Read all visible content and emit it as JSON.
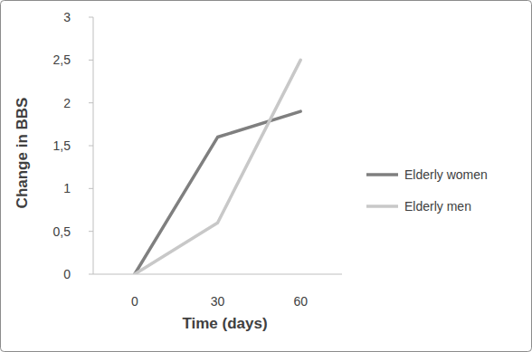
{
  "chart_data": {
    "type": "line",
    "x_label": "Time (days)",
    "y_label": "Change in BBS",
    "categories": [
      "0",
      "30",
      "60"
    ],
    "series": [
      {
        "name": "Elderly women",
        "color": "#7f7f7f",
        "values": [
          0,
          1.6,
          1.9
        ]
      },
      {
        "name": "Elderly men",
        "color": "#c8c8c8",
        "values": [
          0,
          0.6,
          2.5
        ]
      }
    ],
    "ylim": [
      0,
      3
    ],
    "yticks": [
      0,
      {
        "value": 0.5,
        "label": "0,5"
      },
      1,
      {
        "value": 1.5,
        "label": "1,5"
      },
      2,
      {
        "value": 2.5,
        "label": "2,5"
      },
      3
    ],
    "grid": false,
    "legend": "right"
  }
}
